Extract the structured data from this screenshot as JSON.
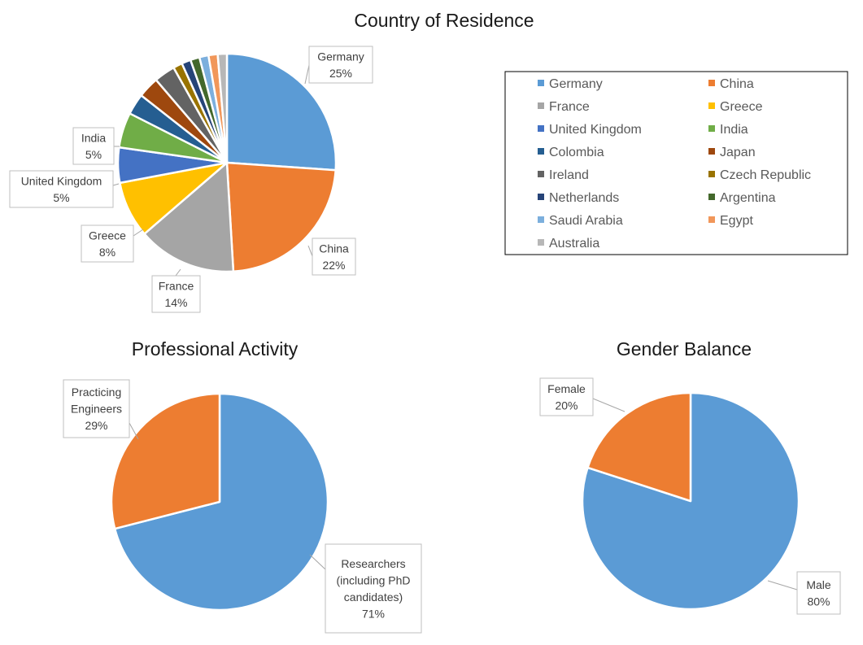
{
  "chart_data": [
    {
      "type": "pie",
      "title": "Country of Residence",
      "legend_position": "right",
      "categories": [
        "Germany",
        "China",
        "France",
        "Greece",
        "United Kingdom",
        "India",
        "Colombia",
        "Japan",
        "Ireland",
        "Czech Republic",
        "Netherlands",
        "Argentina",
        "Saudi Arabia",
        "Egypt",
        "Australia"
      ],
      "values": [
        25,
        22,
        14,
        8,
        5,
        5,
        3,
        3,
        3,
        1.3,
        1.3,
        1.3,
        1.3,
        1.3,
        1.3
      ],
      "colors": [
        "#5b9bd5",
        "#ed7d31",
        "#a5a5a5",
        "#ffc000",
        "#4472c4",
        "#70ad47",
        "#255e91",
        "#9e480e",
        "#636363",
        "#997300",
        "#264478",
        "#43682b",
        "#7cafdd",
        "#f1975a",
        "#b7b7b7"
      ],
      "data_labels": {
        "Germany": [
          "Germany",
          "25%"
        ],
        "China": [
          "China",
          "22%"
        ],
        "France": [
          "France",
          "14%"
        ],
        "Greece": [
          "Greece",
          "8%"
        ],
        "United Kingdom": [
          "United Kingdom",
          "5%"
        ],
        "India": [
          "India",
          "5%"
        ]
      }
    },
    {
      "type": "pie",
      "title": "Professional Activity",
      "categories": [
        "Researchers (including PhD candidates)",
        "Practicing Engineers"
      ],
      "values": [
        71,
        29
      ],
      "colors": [
        "#5b9bd5",
        "#ed7d31"
      ],
      "data_labels": {
        "Researchers (including PhD candidates)": [
          "Researchers",
          "(including PhD",
          "candidates)",
          "71%"
        ],
        "Practicing Engineers": [
          "Practicing",
          "Engineers",
          "29%"
        ]
      }
    },
    {
      "type": "pie",
      "title": "Gender Balance",
      "categories": [
        "Male",
        "Female"
      ],
      "values": [
        80,
        20
      ],
      "colors": [
        "#5b9bd5",
        "#ed7d31"
      ],
      "data_labels": {
        "Male": [
          "Male",
          "80%"
        ],
        "Female": [
          "Female",
          "20%"
        ]
      }
    }
  ]
}
